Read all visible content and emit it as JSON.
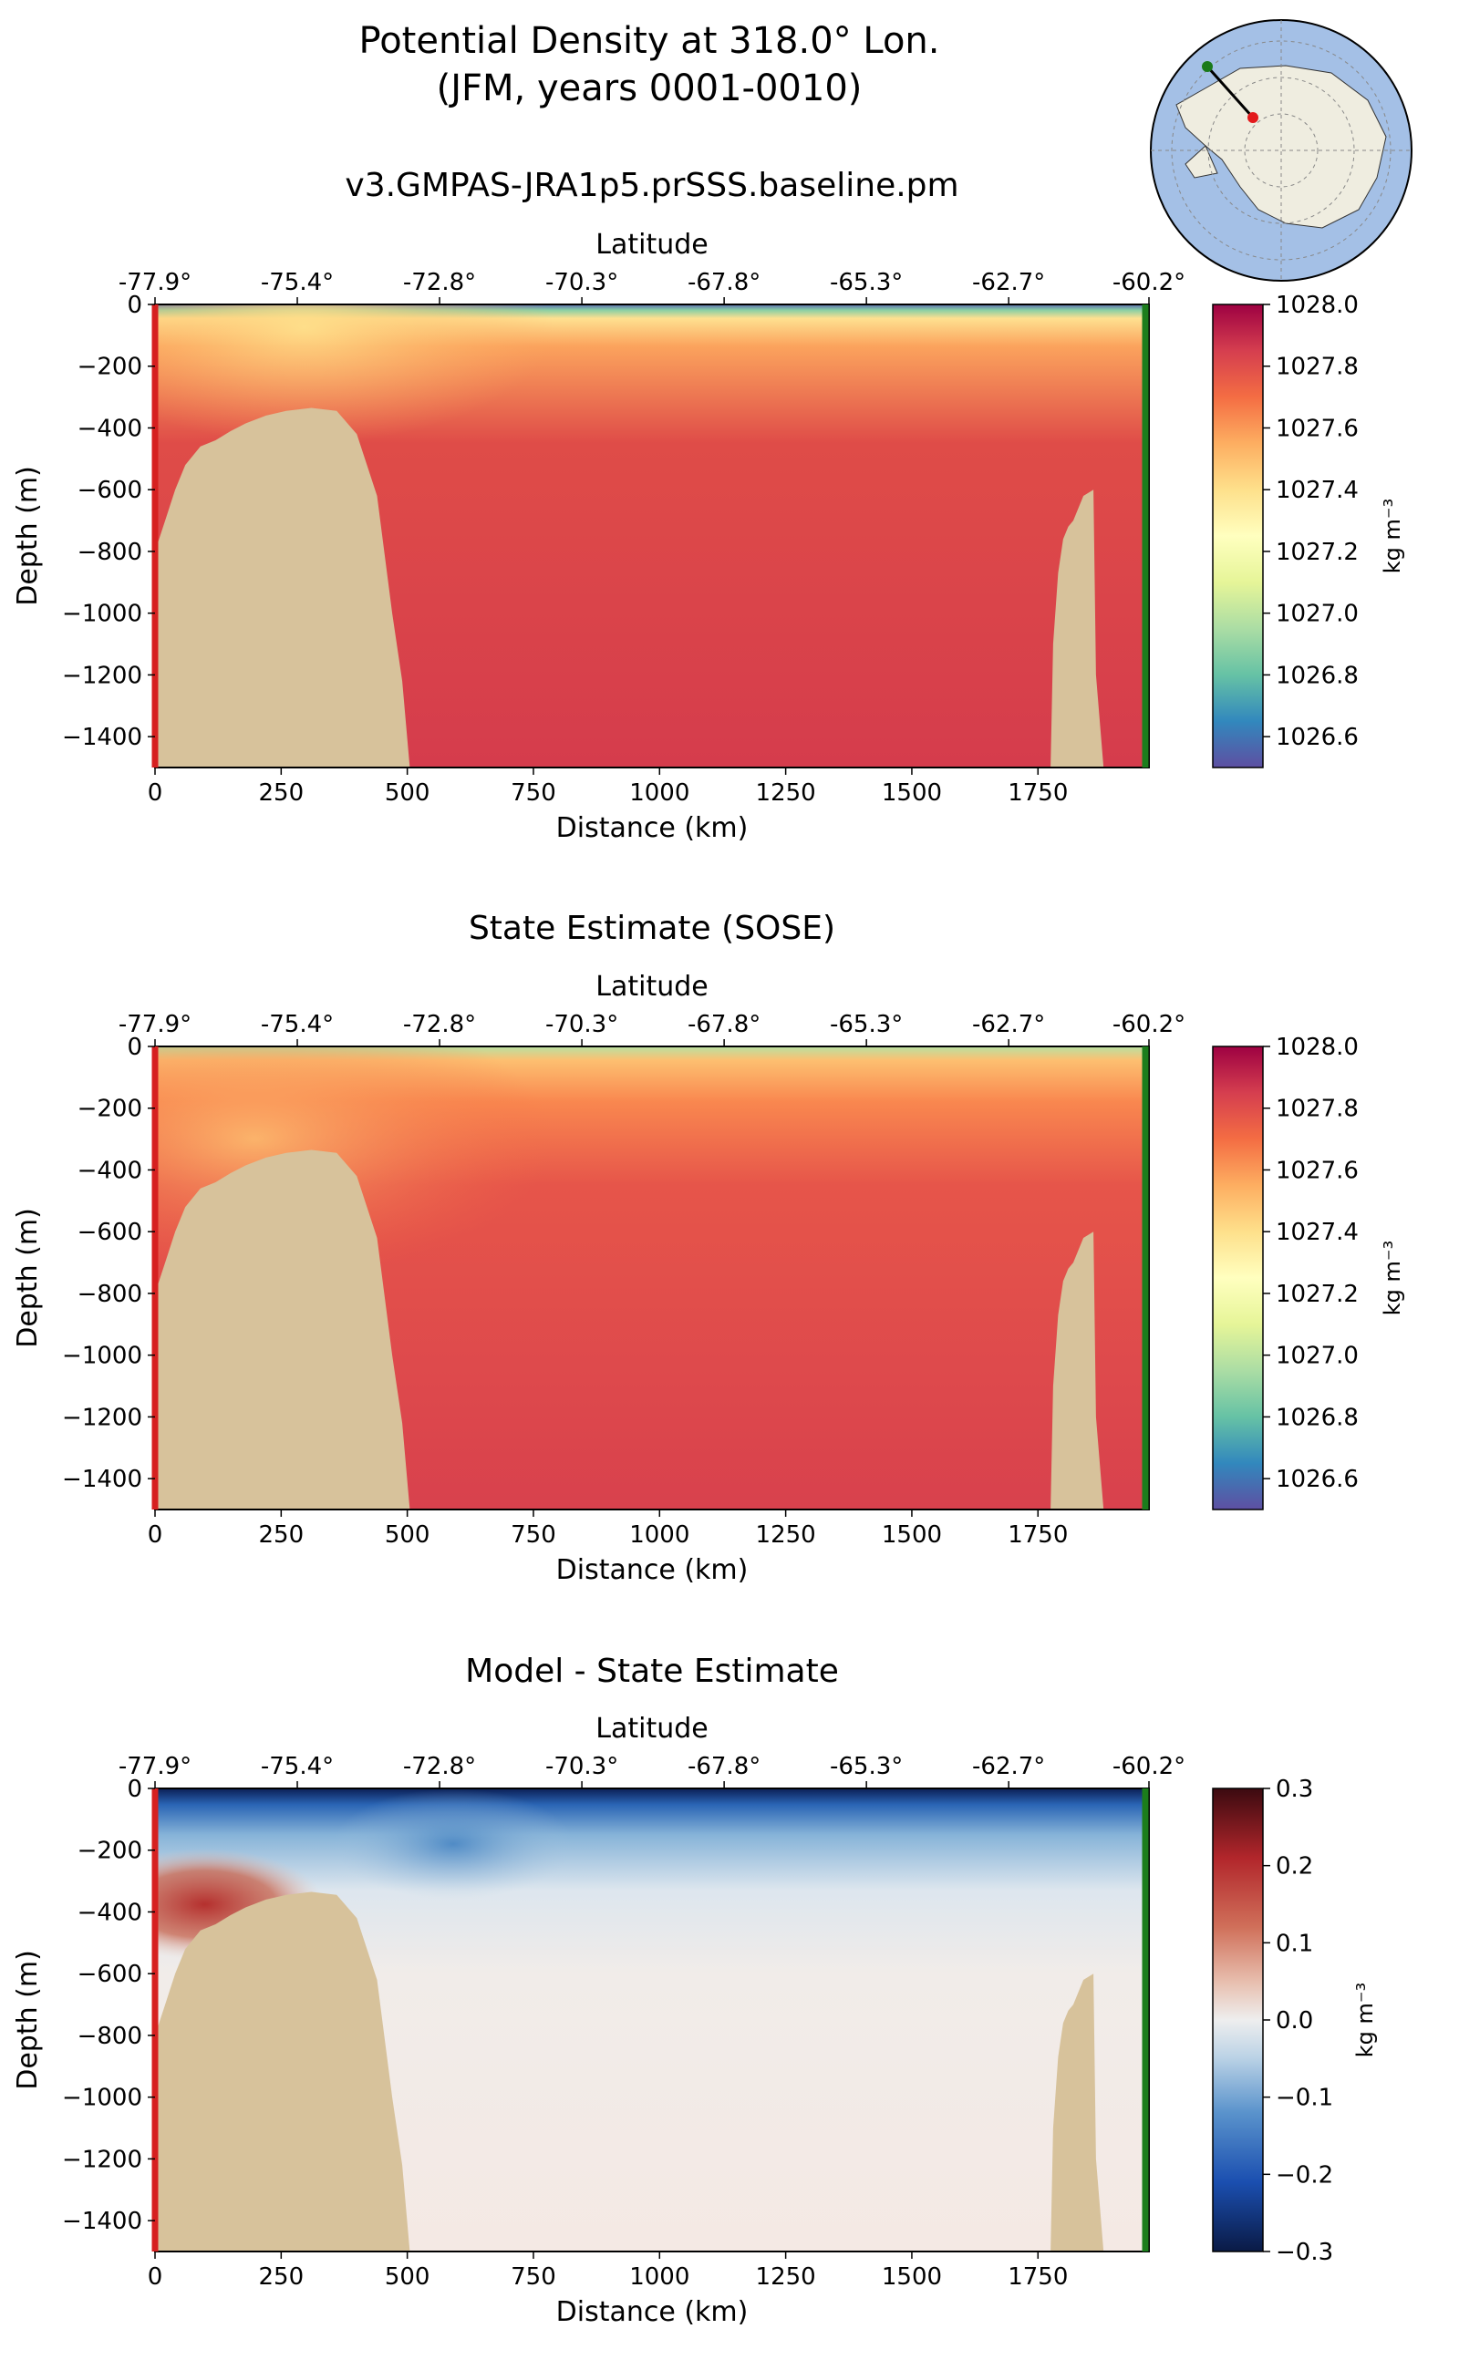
{
  "figure": {
    "title_line1": "Potential Density at 318.0° Lon.",
    "title_line2": "(JFM, years 0001-0010)"
  },
  "inset_map": {
    "description_icon": "antarctica-map-icon",
    "colors": {
      "ocean": "#a4c0e6",
      "land": "#efede0",
      "track": "#000000",
      "start_dot": "#e31a1c",
      "end_dot": "#1a7a1a"
    }
  },
  "chart_data": [
    {
      "type": "heatmap",
      "title": "v3.GMPAS-JRA1p5.prSSS.baseline.pm",
      "xlabel": "Distance (km)",
      "ylabel": "Depth (m)",
      "top_axis_label": "Latitude",
      "xlim": [
        0,
        1970
      ],
      "ylim": [
        -1500,
        0
      ],
      "xticks": [
        0,
        250,
        500,
        750,
        1000,
        1250,
        1500,
        1750
      ],
      "yticks": [
        0,
        -200,
        -400,
        -600,
        -800,
        -1000,
        -1200,
        -1400
      ],
      "lat_ticks": [
        "-77.9°",
        "-75.4°",
        "-72.8°",
        "-70.3°",
        "-67.8°",
        "-65.3°",
        "-62.7°",
        "-60.2°"
      ],
      "lat_tick_distances": [
        0,
        282,
        564,
        846,
        1128,
        1410,
        1692,
        1970
      ],
      "colorbar": {
        "label": "kg m⁻³",
        "min": 1026.5,
        "max": 1028.0,
        "ticks": [
          1026.6,
          1026.8,
          1027.0,
          1027.2,
          1027.4,
          1027.6,
          1027.8,
          1028.0
        ],
        "tick_labels": [
          "1026.6",
          "1026.8",
          "1027.0",
          "1027.2",
          "1027.4",
          "1027.6",
          "1027.8",
          "1028.0"
        ],
        "colormap": "Spectral_r"
      },
      "field_summary": {
        "surface_value": 1026.9,
        "upper_value": 1027.6,
        "deep_value": 1027.87
      }
    },
    {
      "type": "heatmap",
      "title": "State Estimate (SOSE)",
      "xlabel": "Distance (km)",
      "ylabel": "Depth (m)",
      "top_axis_label": "Latitude",
      "xlim": [
        0,
        1970
      ],
      "ylim": [
        -1500,
        0
      ],
      "xticks": [
        0,
        250,
        500,
        750,
        1000,
        1250,
        1500,
        1750
      ],
      "yticks": [
        0,
        -200,
        -400,
        -600,
        -800,
        -1000,
        -1200,
        -1400
      ],
      "lat_ticks": [
        "-77.9°",
        "-75.4°",
        "-72.8°",
        "-70.3°",
        "-67.8°",
        "-65.3°",
        "-62.7°",
        "-60.2°"
      ],
      "lat_tick_distances": [
        0,
        282,
        564,
        846,
        1128,
        1410,
        1692,
        1970
      ],
      "colorbar": {
        "label": "kg m⁻³",
        "min": 1026.5,
        "max": 1028.0,
        "ticks": [
          1026.6,
          1026.8,
          1027.0,
          1027.2,
          1027.4,
          1027.6,
          1027.8,
          1028.0
        ],
        "tick_labels": [
          "1026.6",
          "1026.8",
          "1027.0",
          "1027.2",
          "1027.4",
          "1027.6",
          "1027.8",
          "1028.0"
        ],
        "colormap": "Spectral_r"
      },
      "field_summary": {
        "surface_value": 1027.1,
        "upper_value": 1027.55,
        "deep_value": 1027.85
      }
    },
    {
      "type": "heatmap",
      "title": "Model - State Estimate",
      "xlabel": "Distance (km)",
      "ylabel": "Depth (m)",
      "top_axis_label": "Latitude",
      "xlim": [
        0,
        1970
      ],
      "ylim": [
        -1500,
        0
      ],
      "xticks": [
        0,
        250,
        500,
        750,
        1000,
        1250,
        1500,
        1750
      ],
      "yticks": [
        0,
        -200,
        -400,
        -600,
        -800,
        -1000,
        -1200,
        -1400
      ],
      "lat_ticks": [
        "-77.9°",
        "-75.4°",
        "-72.8°",
        "-70.3°",
        "-67.8°",
        "-65.3°",
        "-62.7°",
        "-60.2°"
      ],
      "lat_tick_distances": [
        0,
        282,
        564,
        846,
        1128,
        1410,
        1692,
        1970
      ],
      "colorbar": {
        "label": "kg m⁻³",
        "min": -0.3,
        "max": 0.3,
        "ticks": [
          -0.3,
          -0.2,
          -0.1,
          0.0,
          0.1,
          0.2,
          0.3
        ],
        "tick_labels": [
          "−0.3",
          "−0.2",
          "−0.1",
          "0.0",
          "0.1",
          "0.2",
          "0.3"
        ],
        "colormap": "RdBu_r"
      },
      "field_summary": {
        "surface_value": -0.25,
        "shelf_anomaly": 0.18,
        "deep_value": 0.02
      }
    }
  ],
  "bathymetry_color": "#d7c29b",
  "start_line_color": "#d62020",
  "end_line_color": "#1c7d1c"
}
